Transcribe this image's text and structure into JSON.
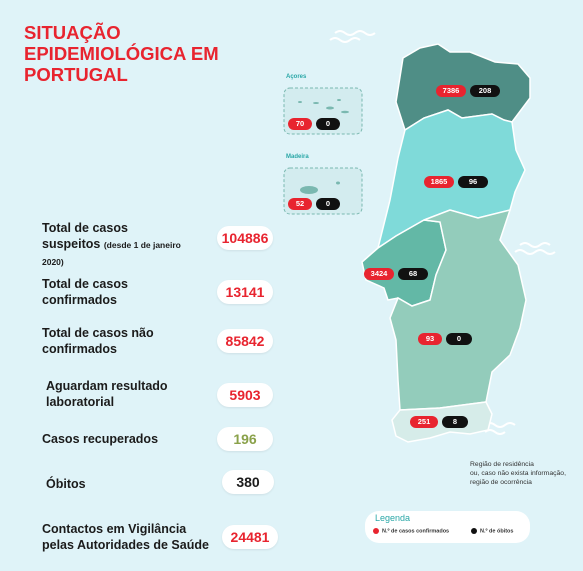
{
  "title_lines": [
    "SITUAÇÃO",
    "EPIDEMIOLÓGICA EM",
    "PORTUGAL"
  ],
  "stats": [
    {
      "label_lines": [
        "Total de casos",
        "suspeitos"
      ],
      "label_small": "(desde 1 de janeiro",
      "label_small2": "2020)",
      "value": "104886"
    },
    {
      "label_lines": [
        "Total de casos",
        "confirmados"
      ],
      "value": "13141"
    },
    {
      "label_lines": [
        "Total de casos não",
        "confirmados"
      ],
      "value": "85842"
    },
    {
      "label_lines": [
        "Aguardam resultado",
        "laboratorial"
      ],
      "value": "5903"
    },
    {
      "label_lines": [
        "Casos recuperados"
      ],
      "value": "196"
    },
    {
      "label_lines": [
        "Óbitos"
      ],
      "value": "380"
    },
    {
      "label_lines": [
        "Contactos em Vigilância",
        "pelas Autoridades de Saúde"
      ],
      "value": "24481"
    }
  ],
  "regions": {
    "acores": {
      "name": "Açores",
      "cases": "70",
      "deaths": "0"
    },
    "madeira": {
      "name": "Madeira",
      "cases": "52",
      "deaths": "0"
    },
    "norte": {
      "cases": "7386",
      "deaths": "208"
    },
    "centro": {
      "cases": "1865",
      "deaths": "96"
    },
    "lvt": {
      "cases": "3424",
      "deaths": "68"
    },
    "alentejo": {
      "cases": "93",
      "deaths": "0"
    },
    "algarve": {
      "cases": "251",
      "deaths": "8"
    }
  },
  "note_lines": [
    "Região de residência",
    "ou, caso não exista informação,",
    "região de ocorrência"
  ],
  "legend": {
    "title": "Legenda",
    "cases_label": "N.º de casos confirmados",
    "deaths_label": "N.º de óbitos"
  },
  "colors": {
    "accent_red": "#e8242f",
    "norte": "#4f8e86",
    "centro": "#7fdad9",
    "lvt": "#63b8a6",
    "alentejo": "#93ccbb",
    "algarve": "#d6ece9",
    "background": "#dff3f8"
  }
}
